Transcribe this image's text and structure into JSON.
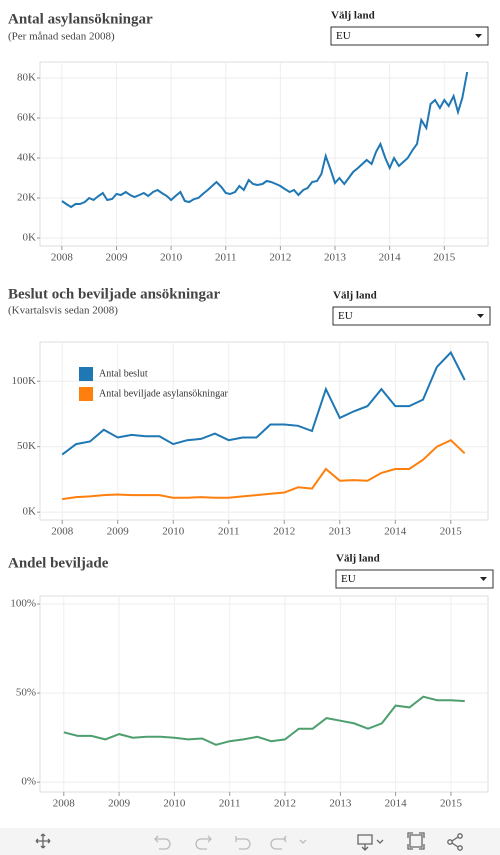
{
  "chart_data": [
    {
      "type": "line",
      "title": "Antal asylansökningar",
      "subtitle": "(Per månad sedan 2008)",
      "filter": {
        "label": "Välj land",
        "value": "EU"
      },
      "x": [
        2008,
        2008.08,
        2008.17,
        2008.25,
        2008.33,
        2008.42,
        2008.5,
        2008.58,
        2008.67,
        2008.75,
        2008.83,
        2008.92,
        2009,
        2009.08,
        2009.17,
        2009.25,
        2009.33,
        2009.42,
        2009.5,
        2009.58,
        2009.67,
        2009.75,
        2009.83,
        2009.92,
        2010,
        2010.08,
        2010.17,
        2010.25,
        2010.33,
        2010.42,
        2010.5,
        2010.58,
        2010.67,
        2010.75,
        2010.83,
        2010.92,
        2011,
        2011.08,
        2011.17,
        2011.25,
        2011.33,
        2011.42,
        2011.5,
        2011.58,
        2011.67,
        2011.75,
        2011.83,
        2011.92,
        2012,
        2012.08,
        2012.17,
        2012.25,
        2012.33,
        2012.42,
        2012.5,
        2012.58,
        2012.67,
        2012.75,
        2012.83,
        2012.92,
        2013,
        2013.08,
        2013.17,
        2013.25,
        2013.33,
        2013.42,
        2013.5,
        2013.58,
        2013.67,
        2013.75,
        2013.83,
        2013.92,
        2014,
        2014.08,
        2014.17,
        2014.25,
        2014.33,
        2014.42,
        2014.5,
        2014.58,
        2014.67,
        2014.75,
        2014.83,
        2014.92,
        2015,
        2015.08,
        2015.17,
        2015.25,
        2015.33,
        2015.42
      ],
      "series": [
        {
          "name": "Antal asylansökningar",
          "color": "#1f77b4",
          "values": [
            18500,
            17000,
            15500,
            17000,
            17000,
            18000,
            20000,
            19000,
            21000,
            22500,
            19000,
            19500,
            22000,
            21500,
            23000,
            21500,
            20500,
            21500,
            22500,
            21000,
            23000,
            24000,
            22500,
            21000,
            19000,
            21000,
            23000,
            18500,
            18000,
            19500,
            20000,
            22000,
            24000,
            26000,
            28000,
            25500,
            22500,
            22000,
            23000,
            26000,
            24000,
            29000,
            27000,
            26500,
            27000,
            28500,
            28000,
            27000,
            26000,
            24500,
            23000,
            24000,
            21500,
            24000,
            25000,
            28000,
            28500,
            32000,
            41000,
            34000,
            27500,
            30000,
            27000,
            30000,
            33000,
            35000,
            37000,
            39000,
            37000,
            43000,
            47000,
            40000,
            35000,
            40000,
            36000,
            38000,
            40000,
            44000,
            47000,
            59000,
            55000,
            67000,
            69000,
            65000,
            69000,
            66000,
            71000,
            63000,
            70000,
            83000
          ]
        }
      ],
      "xlim": [
        2007.6,
        2015.8
      ],
      "xticks": [
        2008,
        2009,
        2010,
        2011,
        2012,
        2013,
        2014,
        2015
      ],
      "ylim": [
        -4000,
        88000
      ],
      "yticks": [
        {
          "value": 0,
          "label": "0K"
        },
        {
          "value": 20000,
          "label": "20K"
        },
        {
          "value": 40000,
          "label": "40K"
        },
        {
          "value": 60000,
          "label": "60K"
        },
        {
          "value": 80000,
          "label": "80K"
        }
      ],
      "grid": true
    },
    {
      "type": "line",
      "title": "Beslut och beviljade ansökningar",
      "subtitle": "(Kvartalsvis sedan 2008)",
      "filter": {
        "label": "Välj land",
        "value": "EU"
      },
      "x": [
        2008,
        2008.25,
        2008.5,
        2008.75,
        2009,
        2009.25,
        2009.5,
        2009.75,
        2010,
        2010.25,
        2010.5,
        2010.75,
        2011,
        2011.25,
        2011.5,
        2011.75,
        2012,
        2012.25,
        2012.5,
        2012.75,
        2013,
        2013.25,
        2013.5,
        2013.75,
        2014,
        2014.25,
        2014.5,
        2014.75,
        2015,
        2015.25
      ],
      "series": [
        {
          "name": "Antal beslut",
          "color": "#1f77b4",
          "values": [
            44000,
            52000,
            54000,
            63000,
            57000,
            59000,
            58000,
            58000,
            52000,
            55000,
            56000,
            60000,
            55000,
            57000,
            57000,
            67000,
            67000,
            66000,
            62000,
            94000,
            72000,
            77000,
            81000,
            94000,
            81000,
            81000,
            86000,
            111000,
            122000,
            101000
          ]
        },
        {
          "name": "Antal beviljade asylansökningar",
          "color": "#ff7f0e",
          "values": [
            10000,
            11500,
            12000,
            13000,
            13500,
            13000,
            13000,
            13000,
            11000,
            11000,
            11500,
            11000,
            11000,
            12000,
            13000,
            14000,
            15000,
            19000,
            18000,
            33000,
            24000,
            24500,
            24000,
            30000,
            33000,
            33000,
            40000,
            50000,
            55000,
            45000
          ]
        }
      ],
      "xlim": [
        2007.6,
        2015.67
      ],
      "xticks": [
        2008,
        2009,
        2010,
        2011,
        2012,
        2013,
        2014,
        2015
      ],
      "ylim": [
        -6000,
        130000
      ],
      "yticks": [
        {
          "value": 0,
          "label": "0K"
        },
        {
          "value": 50000,
          "label": "50K"
        },
        {
          "value": 100000,
          "label": "100K"
        }
      ],
      "grid": true,
      "legend": "upper left"
    },
    {
      "type": "line",
      "title": "Andel beviljade",
      "filter": {
        "label": "Välj land",
        "value": "EU"
      },
      "x": [
        2008,
        2008.25,
        2008.5,
        2008.75,
        2009,
        2009.25,
        2009.5,
        2009.75,
        2010,
        2010.25,
        2010.5,
        2010.75,
        2011,
        2011.25,
        2011.5,
        2011.75,
        2012,
        2012.25,
        2012.5,
        2012.75,
        2013,
        2013.25,
        2013.5,
        2013.75,
        2014,
        2014.25,
        2014.5,
        2014.75,
        2015,
        2015.25
      ],
      "series": [
        {
          "name": "Andel beviljade",
          "color": "#4e9f6e",
          "values": [
            28,
            26,
            26,
            24,
            27,
            25,
            25.5,
            25.5,
            25,
            24,
            24.5,
            21,
            23,
            24,
            25.5,
            23,
            24,
            30,
            30,
            36,
            34.5,
            33,
            30,
            33,
            43,
            42,
            48,
            46,
            46,
            45.5
          ]
        }
      ],
      "xlim": [
        2007.57,
        2015.67
      ],
      "xticks": [
        2008,
        2009,
        2010,
        2011,
        2012,
        2013,
        2014,
        2015
      ],
      "ylim": [
        -5.5,
        104.5
      ],
      "yticks": [
        {
          "value": 0,
          "label": "0%"
        },
        {
          "value": 50,
          "label": "50%"
        },
        {
          "value": 100,
          "label": "100%"
        }
      ],
      "grid": true
    }
  ]
}
